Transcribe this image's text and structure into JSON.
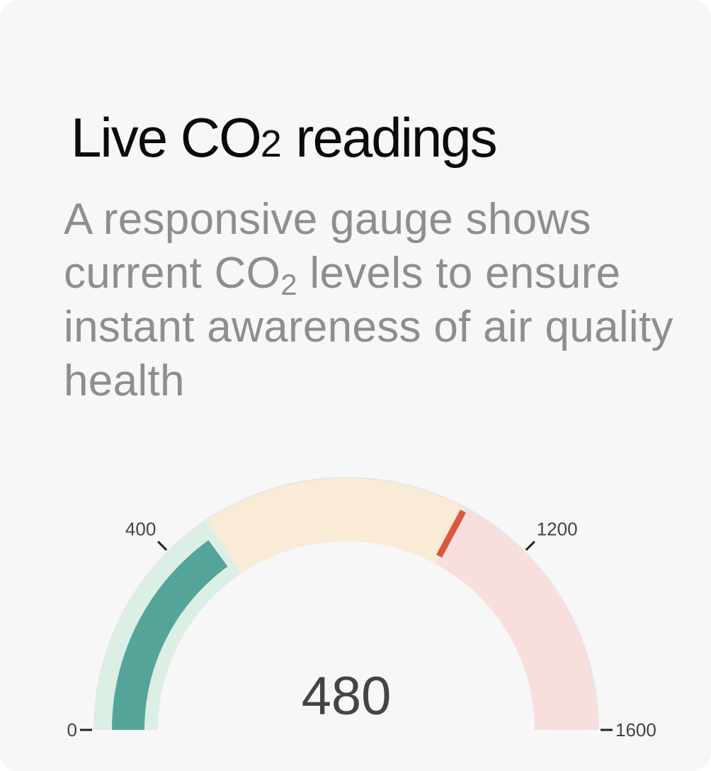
{
  "card": {
    "title_main": "Live CO",
    "title_sub": "2",
    "title_rest": " readings",
    "desc_part1": "A responsive gauge shows current CO",
    "desc_sub": "2",
    "desc_part2": " levels to ensure instant awareness of air quality health"
  },
  "chart_data": {
    "type": "gauge",
    "min": 0,
    "max": 1600,
    "value": 480,
    "value_label": "480",
    "marker": 1050,
    "bands": [
      {
        "from": 0,
        "to": 500,
        "color": "#dcefe5"
      },
      {
        "from": 500,
        "to": 1050,
        "color": "#faebd6"
      },
      {
        "from": 1050,
        "to": 1600,
        "color": "#f8dedd"
      }
    ],
    "value_color": "#55a49a",
    "marker_color": "#d9583e",
    "ticks": [
      {
        "value": 0,
        "label": "0"
      },
      {
        "value": 400,
        "label": "400"
      },
      {
        "value": 1200,
        "label": "1200"
      },
      {
        "value": 1600,
        "label": "1600"
      }
    ]
  }
}
